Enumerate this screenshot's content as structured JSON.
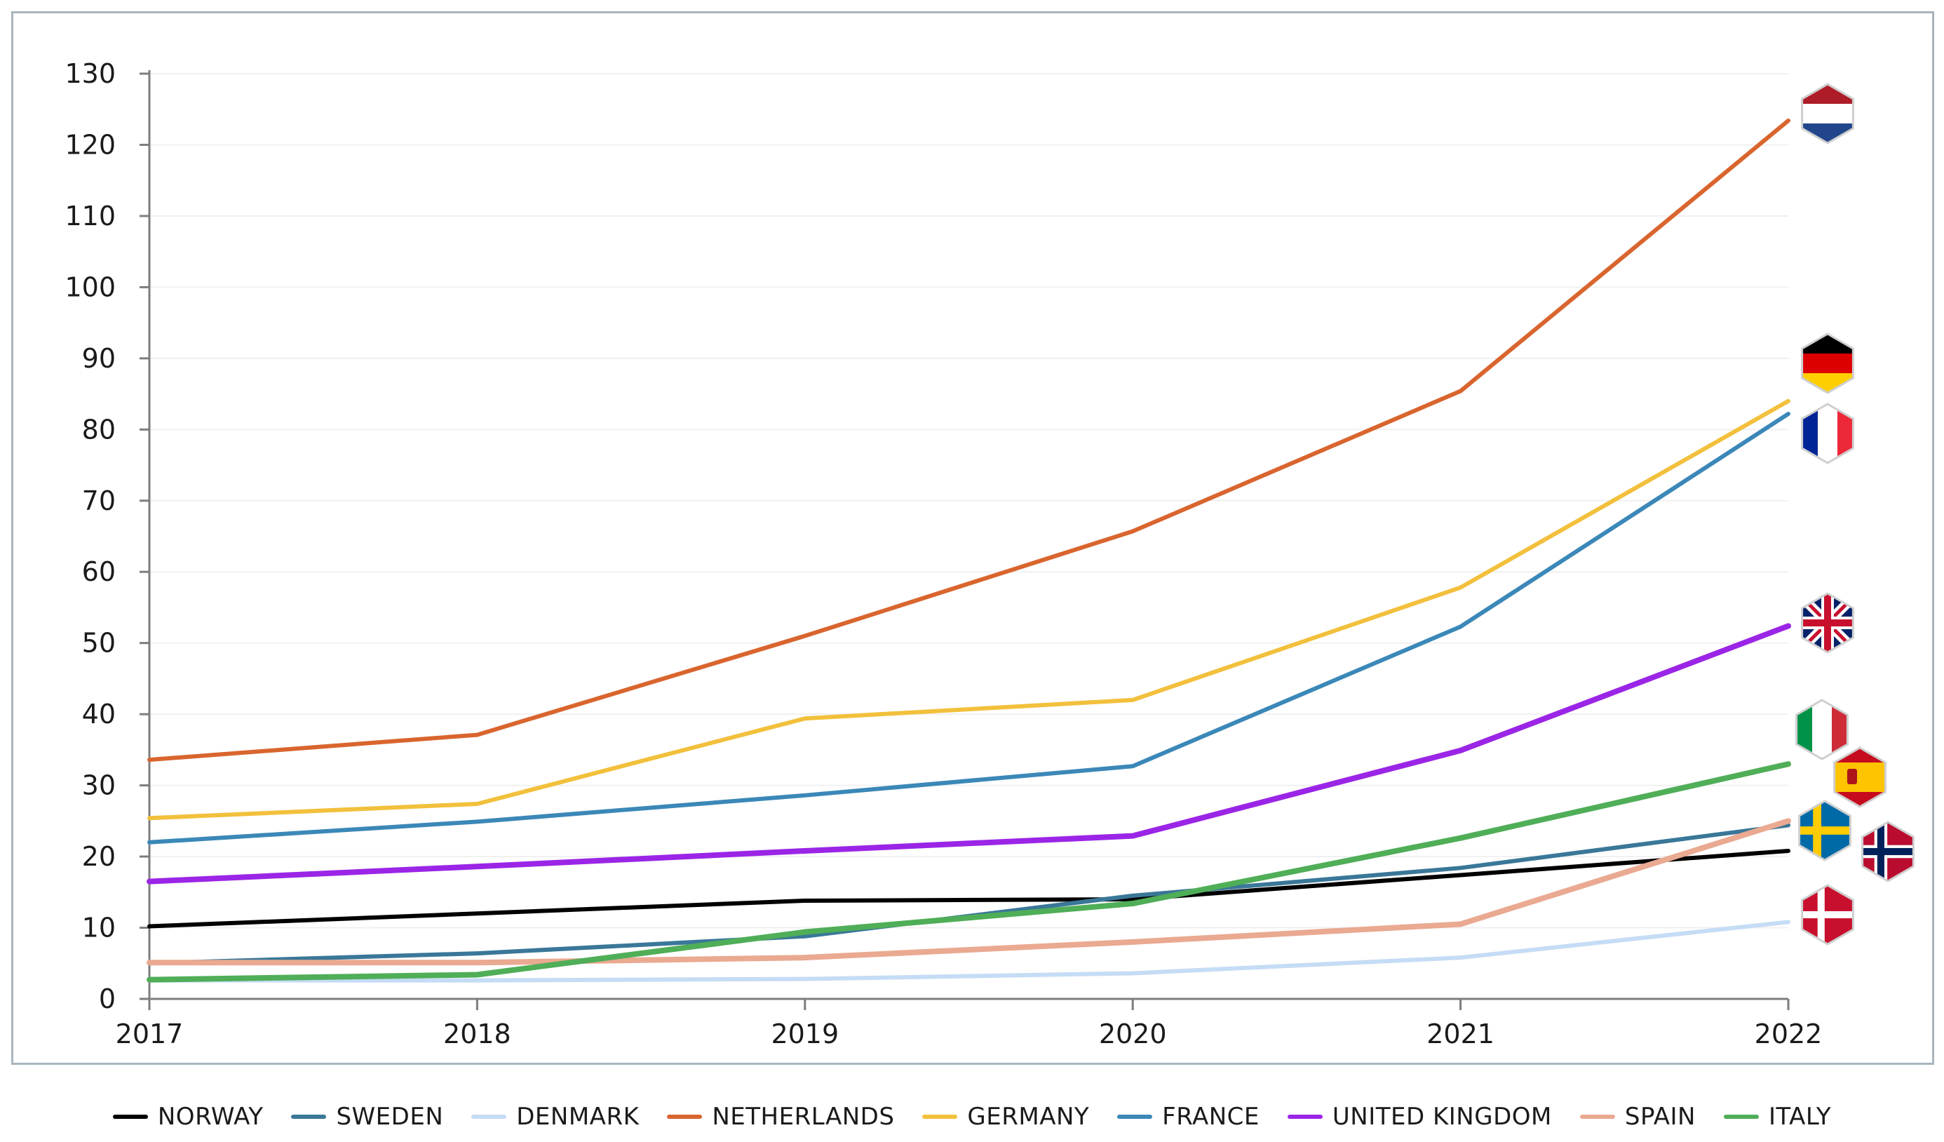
{
  "chart_data": {
    "type": "line",
    "title": "",
    "xlabel": "",
    "ylabel": "",
    "x": [
      "2017",
      "2018",
      "2019",
      "2020",
      "2021",
      "2022"
    ],
    "ylim": [
      0,
      130
    ],
    "yticks": [
      "0",
      "10",
      "20",
      "30",
      "40",
      "50",
      "60",
      "70",
      "80",
      "90",
      "100",
      "110",
      "120",
      "130"
    ],
    "grid": "horizontal",
    "legend_position": "bottom",
    "series": [
      {
        "name": "NORWAY",
        "color": "#000000",
        "values": [
          10.2,
          12.0,
          13.8,
          14.0,
          17.4,
          20.8
        ],
        "flag": "norway-flag"
      },
      {
        "name": "SWEDEN",
        "color": "#3a7798",
        "values": [
          5.0,
          6.4,
          8.8,
          14.5,
          18.4,
          24.4
        ],
        "flag": "sweden-flag"
      },
      {
        "name": "DENMARK",
        "color": "#c5dcf5",
        "values": [
          2.6,
          2.6,
          2.8,
          3.6,
          5.8,
          10.8
        ],
        "flag": "denmark-flag"
      },
      {
        "name": "NETHERLANDS",
        "color": "#d9652e",
        "values": [
          33.6,
          37.1,
          51.0,
          65.7,
          85.4,
          123.4
        ],
        "flag": "netherlands-flag"
      },
      {
        "name": "GERMANY",
        "color": "#f2c03c",
        "values": [
          25.4,
          27.4,
          39.4,
          42.0,
          57.8,
          84.0
        ],
        "flag": "germany-flag"
      },
      {
        "name": "FRANCE",
        "color": "#3b88b8",
        "values": [
          22.0,
          24.9,
          28.6,
          32.7,
          52.3,
          82.2
        ],
        "flag": "france-flag"
      },
      {
        "name": "UNITED KINGDOM",
        "color": "#9b25e6",
        "values": [
          16.5,
          18.6,
          20.8,
          22.9,
          34.9,
          52.4
        ],
        "flag": "uk-flag"
      },
      {
        "name": "SPAIN",
        "color": "#eaa991",
        "values": [
          5.1,
          5.1,
          5.8,
          8.0,
          10.5,
          25.0
        ],
        "flag": "spain-flag"
      },
      {
        "name": "ITALY",
        "color": "#4fae57",
        "values": [
          2.7,
          3.4,
          9.4,
          13.4,
          22.6,
          33.0
        ],
        "flag": "italy-flag"
      }
    ]
  }
}
